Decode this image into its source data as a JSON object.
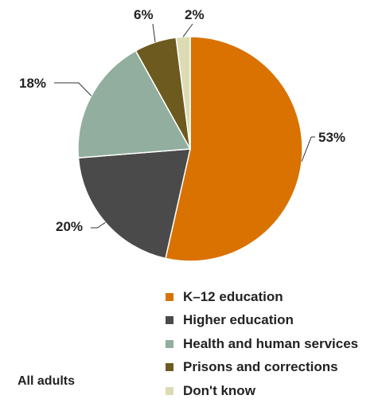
{
  "chart_data": {
    "type": "pie",
    "categories": [
      "K–12 education",
      "Higher education",
      "Health and human services",
      "Prisons and corrections",
      "Don't know"
    ],
    "values": [
      53,
      20,
      18,
      6,
      2
    ],
    "labels": [
      "53%",
      "20%",
      "18%",
      "6%",
      "2%"
    ],
    "colors": [
      "#D97200",
      "#4A4A4A",
      "#91AE9E",
      "#6D5A1E",
      "#DCDBB3"
    ],
    "title": "",
    "legend_position": "bottom-right",
    "note": "All adults"
  }
}
